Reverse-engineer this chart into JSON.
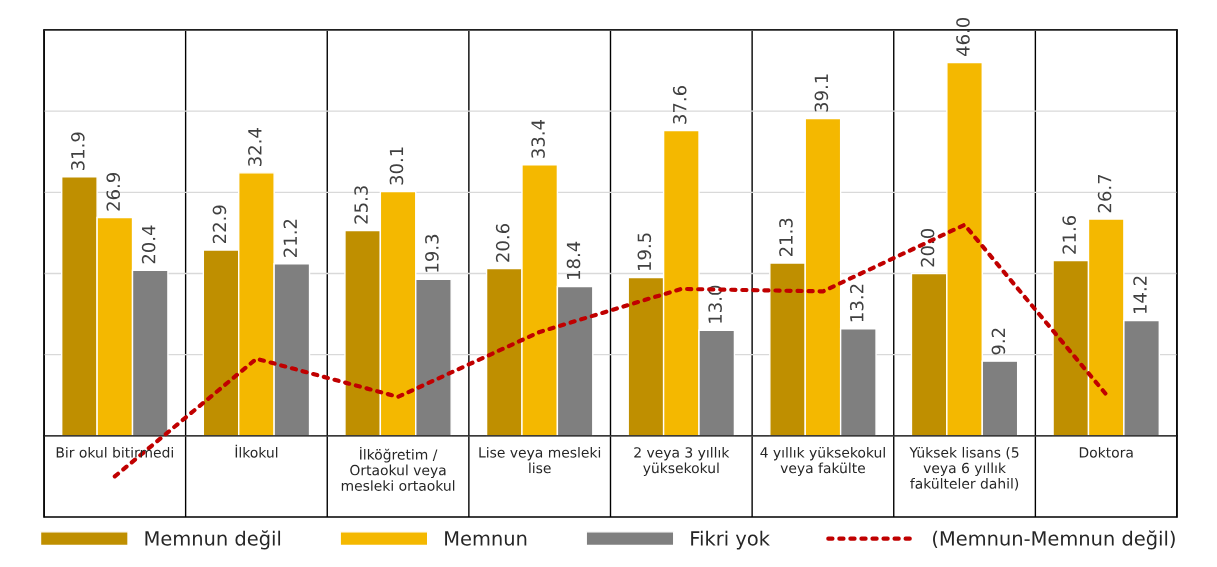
{
  "chart_data": {
    "type": "bar",
    "categories": [
      "Bir okul bitirmedi",
      "İlkokul",
      "İlköğretim / Ortaokul veya mesleki ortaokul",
      "Lise veya mesleki lise",
      "2 veya 3 yıllık yüksekokul",
      "4 yıllık yüksekokul veya fakülte",
      "Yüksek lisans (5 veya 6 yıllık fakülteler dahil)",
      "Doktora"
    ],
    "series": [
      {
        "name": "Memnun değil",
        "color": "#bf8f00",
        "values": [
          31.9,
          22.9,
          25.3,
          20.6,
          19.5,
          21.3,
          20.0,
          21.6
        ],
        "value_labels": [
          "31.9",
          "22.9",
          "25.3",
          "20.6",
          "19.5",
          "21.3",
          "20.0",
          "21.6"
        ]
      },
      {
        "name": "Memnun",
        "color": "#f4b800",
        "values": [
          26.9,
          32.4,
          30.1,
          33.4,
          37.6,
          39.1,
          46.0,
          26.7
        ],
        "value_labels": [
          "26.9",
          "32.4",
          "30.1",
          "33.4",
          "37.6",
          "39.1",
          "46.0",
          "26.7"
        ]
      },
      {
        "name": "Fikri yok",
        "color": "#7f7f7f",
        "values": [
          20.4,
          21.2,
          19.3,
          18.4,
          13.0,
          13.2,
          9.2,
          14.2
        ],
        "value_labels": [
          "20.4",
          "21.2",
          "19.3",
          "18.4",
          "13.0",
          "13.2",
          "9.2",
          "14.2"
        ]
      },
      {
        "name": "(Memnun-Memnun değil)",
        "type": "line",
        "color": "#c00000",
        "line_style": "dotted",
        "values": [
          -5.0,
          9.5,
          4.8,
          12.8,
          18.1,
          17.8,
          26.0,
          5.1
        ]
      }
    ],
    "ylim": [
      -10,
      50
    ],
    "yticks": [
      {
        "value": 0,
        "label": null
      },
      {
        "value": 10,
        "label": null
      },
      {
        "value": 20,
        "label": null
      },
      {
        "value": 30,
        "label": null
      },
      {
        "value": 40,
        "label": null
      },
      {
        "value": 50,
        "label": null
      }
    ],
    "tick_labels": "x",
    "grid": true,
    "legend": "bottom"
  }
}
